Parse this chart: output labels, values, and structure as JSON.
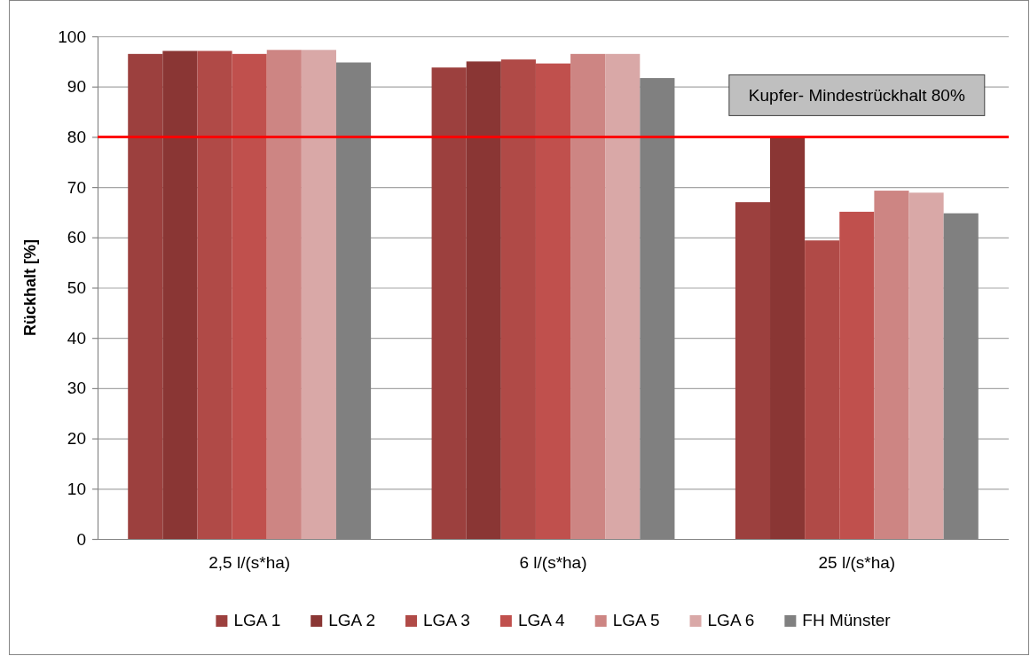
{
  "chart_data": {
    "type": "bar",
    "ylabel": "Rückhalt [%]",
    "categories": [
      "2,5 l/(s*ha)",
      "6 l/(s*ha)",
      "25 l/(s*ha)"
    ],
    "series": [
      {
        "name": "LGA 1",
        "color": "#9c403e",
        "values": [
          96.5,
          93.8,
          67.0
        ]
      },
      {
        "name": "LGA 2",
        "color": "#8a3634",
        "values": [
          97.1,
          95.0,
          80.0
        ]
      },
      {
        "name": "LGA 3",
        "color": "#b04a47",
        "values": [
          97.1,
          95.4,
          59.4
        ]
      },
      {
        "name": "LGA 4",
        "color": "#c0504d",
        "values": [
          96.5,
          94.6,
          65.1
        ]
      },
      {
        "name": "LGA 5",
        "color": "#cd8583",
        "values": [
          97.3,
          96.5,
          69.3
        ]
      },
      {
        "name": "LGA 6",
        "color": "#d9a8a7",
        "values": [
          97.3,
          96.5,
          68.9
        ]
      },
      {
        "name": "FH Münster",
        "color": "#808080",
        "values": [
          94.8,
          91.7,
          64.8
        ]
      }
    ],
    "ylim": [
      0,
      100
    ],
    "yticks": [
      0,
      10,
      20,
      30,
      40,
      50,
      60,
      70,
      80,
      90,
      100
    ],
    "grid": "y",
    "legend": "bottom",
    "ref_lines": [
      {
        "axis": "y",
        "value": 80,
        "label": "Kupfer- Mindestrückhalt 80%",
        "color": "#ff0000"
      }
    ]
  }
}
